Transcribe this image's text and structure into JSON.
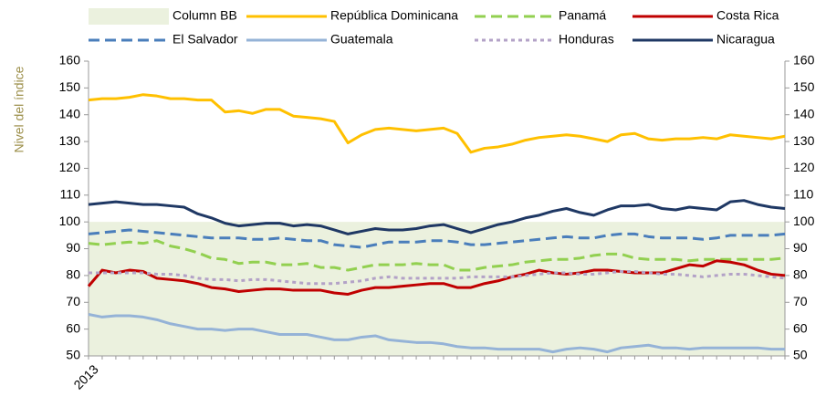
{
  "chart_data": {
    "type": "line",
    "y_label": "Nivel del índice",
    "ylim": [
      50,
      160
    ],
    "yticks": [
      50,
      60,
      70,
      80,
      90,
      100,
      110,
      120,
      130,
      140,
      150,
      160
    ],
    "y2lim": [
      50,
      160
    ],
    "y2ticks": [
      50,
      60,
      70,
      80,
      90,
      100,
      110,
      120,
      130,
      140,
      150,
      160
    ],
    "grid": false,
    "legend": "top",
    "categories": [
      "2013",
      null,
      null,
      null,
      null,
      null,
      null,
      null,
      null,
      null,
      null,
      null,
      null,
      null,
      null,
      null,
      null,
      null,
      null,
      null,
      null,
      null,
      null,
      null,
      null,
      null,
      null,
      null,
      null,
      null,
      null,
      null,
      null,
      null,
      null,
      null,
      null,
      null,
      null,
      null,
      null,
      null,
      null,
      null,
      null,
      null,
      null,
      null,
      null,
      null,
      null,
      null
    ],
    "series": [
      {
        "name": "Column BB",
        "kind": "area",
        "color": "#ebf1de",
        "values": [
          100,
          100,
          100,
          100,
          100,
          100,
          100,
          100,
          100,
          100,
          100,
          100,
          100,
          100,
          100,
          100,
          100,
          100,
          100,
          100,
          100,
          100,
          100,
          100,
          100,
          100,
          100,
          100,
          100,
          100,
          100,
          100,
          100,
          100,
          100,
          100,
          100,
          100,
          100,
          100,
          100,
          100,
          100,
          100,
          100,
          100,
          100,
          100,
          100,
          100,
          100,
          100
        ]
      },
      {
        "name": "República Dominicana",
        "kind": "line",
        "style": "solid",
        "color": "#ffc000",
        "values": [
          145.5,
          146,
          146,
          146.5,
          147.5,
          147,
          146,
          146,
          145.5,
          145.5,
          141,
          141.5,
          140.5,
          142,
          142,
          139.5,
          139,
          138.5,
          137.5,
          129.5,
          132.5,
          134.5,
          135,
          134.5,
          134,
          134.5,
          135,
          133,
          126,
          127.5,
          128,
          129,
          130.5,
          131.5,
          132,
          132.5,
          132,
          131,
          130,
          132.5,
          133,
          131,
          130.5,
          131,
          131,
          131.5,
          131,
          132.5,
          132,
          131.5,
          131,
          132
        ]
      },
      {
        "name": "Panamá",
        "kind": "line",
        "style": "dashed",
        "color": "#92d050",
        "values": [
          92,
          91.5,
          92,
          92.5,
          92,
          93,
          91,
          90,
          88.5,
          86.5,
          86,
          84.5,
          85,
          85,
          84,
          84,
          84.5,
          83,
          83,
          82,
          83,
          84,
          84,
          84,
          84.5,
          84,
          84,
          82,
          82,
          83,
          83.5,
          84,
          85,
          85.5,
          86,
          86,
          86.5,
          87.5,
          88,
          88,
          86.5,
          86,
          86,
          86,
          85.5,
          86,
          86,
          86,
          86,
          86,
          86,
          86.5
        ]
      },
      {
        "name": "Costa Rica",
        "kind": "line",
        "style": "solid",
        "color": "#c00000",
        "values": [
          76,
          82,
          81,
          82,
          81.5,
          79,
          78.5,
          78,
          77,
          75.5,
          75,
          74,
          74.5,
          75,
          75,
          74.5,
          74.5,
          74.5,
          73.5,
          73,
          74.5,
          75.5,
          75.5,
          76,
          76.5,
          77,
          77,
          75.5,
          75.5,
          77,
          78,
          79.5,
          80.5,
          82,
          81,
          80.5,
          81,
          82,
          82,
          81.5,
          81,
          81,
          81,
          82.5,
          84,
          83.5,
          85.5,
          85,
          84,
          82,
          80.5,
          80
        ]
      },
      {
        "name": "El Salvador",
        "kind": "line",
        "style": "dashed",
        "color": "#4a7ebb",
        "values": [
          95.5,
          96,
          96.5,
          97,
          96.5,
          96,
          95.5,
          95,
          94.5,
          94,
          94,
          94,
          93.5,
          93.5,
          94,
          93.5,
          93,
          93,
          91.5,
          91,
          90.5,
          91.5,
          92.5,
          92.5,
          92.5,
          93,
          93,
          92.5,
          91.5,
          91.5,
          92,
          92.5,
          93,
          93.5,
          94,
          94.5,
          94,
          94,
          95,
          95.5,
          95.5,
          94.5,
          94,
          94,
          94,
          93.5,
          94,
          95,
          95,
          95,
          95,
          95.5
        ]
      },
      {
        "name": "Guatemala",
        "kind": "line",
        "style": "solid",
        "color": "#95b3d7",
        "values": [
          65.5,
          64.5,
          65,
          65,
          64.5,
          63.5,
          62,
          61,
          60,
          60,
          59.5,
          60,
          60,
          59,
          58,
          58,
          58,
          57,
          56,
          56,
          57,
          57.5,
          56,
          55.5,
          55,
          55,
          54.5,
          53.5,
          53,
          53,
          52.5,
          52.5,
          52.5,
          52.5,
          51.5,
          52.5,
          53,
          52.5,
          51.5,
          53,
          53.5,
          54,
          53,
          53,
          52.5,
          53,
          53,
          53,
          53,
          53,
          52.5,
          52.5
        ]
      },
      {
        "name": "Honduras",
        "kind": "line",
        "style": "dotted",
        "color": "#b3a2c7",
        "values": [
          81,
          81,
          81,
          81,
          81,
          80.5,
          80.5,
          80,
          79,
          78.5,
          78.5,
          78,
          78.5,
          78.5,
          78,
          77.5,
          77,
          77,
          77,
          77.5,
          78,
          79,
          79.5,
          79,
          79,
          79,
          79,
          79,
          79.5,
          79.5,
          79.5,
          79.5,
          80,
          80.5,
          81,
          81,
          80.5,
          80.5,
          81,
          81.5,
          81.5,
          81,
          80.5,
          80.5,
          80,
          79.5,
          80,
          80.5,
          80.5,
          80,
          79.5,
          79
        ]
      },
      {
        "name": "Nicaragua",
        "kind": "line",
        "style": "solid",
        "color": "#1f3864",
        "values": [
          106.5,
          107,
          107.5,
          107,
          106.5,
          106.5,
          106,
          105.5,
          103,
          101.5,
          99.5,
          98.5,
          99,
          99.5,
          99.5,
          98.5,
          99,
          98.5,
          97,
          95.5,
          96.5,
          97.5,
          97,
          97,
          97.5,
          98.5,
          99,
          97.5,
          96,
          97.5,
          99,
          100,
          101.5,
          102.5,
          104,
          105,
          103.5,
          102.5,
          104.5,
          106,
          106,
          106.5,
          105,
          104.5,
          105.5,
          105,
          104.5,
          107.5,
          108,
          106.5,
          105.5,
          105
        ]
      }
    ]
  }
}
